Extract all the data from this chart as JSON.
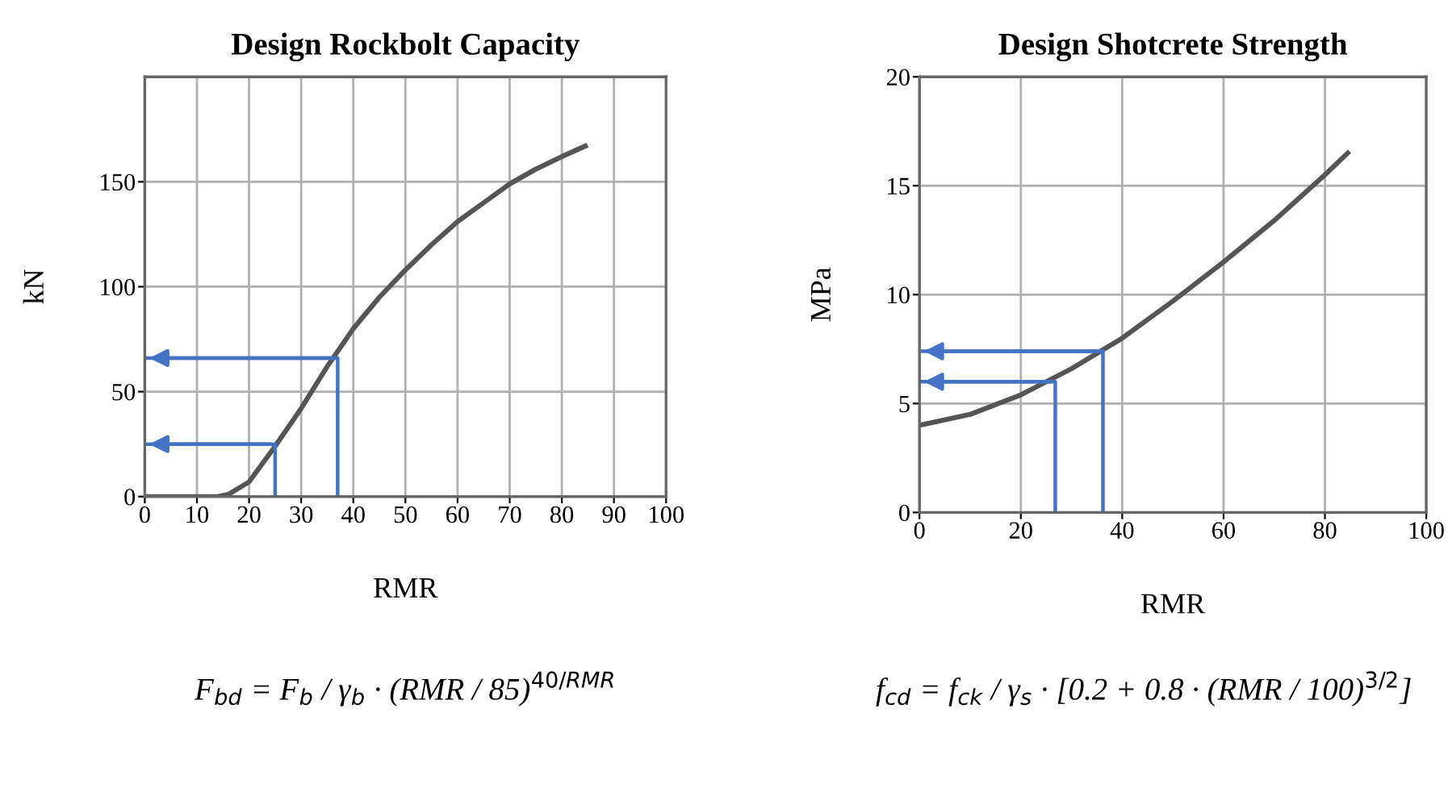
{
  "chart_data": [
    {
      "type": "line",
      "title": "Design Rockbolt Capacity",
      "xlabel": "RMR",
      "ylabel": "kN",
      "xlim": [
        0,
        100
      ],
      "ylim": [
        0,
        200
      ],
      "xticks": [
        0,
        10,
        20,
        30,
        40,
        50,
        60,
        70,
        80,
        90,
        100
      ],
      "yticks": [
        0,
        50,
        100,
        150
      ],
      "grid": true,
      "annotations": [
        "F$_{bd}$ = F$_{b}$ / γ$_{b}$ · (RMR / 85)$^{40/RMR}$"
      ],
      "series": [
        {
          "color": "#555555",
          "x": [
            0,
            14,
            16,
            20,
            25,
            30,
            35,
            40,
            45,
            50,
            55,
            60,
            65,
            70,
            75,
            80,
            84.5
          ],
          "values": [
            0,
            0,
            1,
            7,
            24,
            42,
            62,
            80,
            95,
            108,
            120,
            131,
            140,
            149,
            156,
            162,
            167
          ]
        },
        {
          "color": "#4472c4",
          "x": [
            25,
            25,
            0
          ],
          "values": [
            0,
            25,
            25
          ]
        },
        {
          "color": "#4472c4",
          "x": [
            37,
            37,
            0
          ],
          "values": [
            0,
            66,
            66
          ]
        }
      ]
    },
    {
      "type": "line",
      "title": "Design Shotcrete Strength",
      "xlabel": "RMR",
      "ylabel": "MPa",
      "xlim": [
        0,
        100
      ],
      "ylim": [
        0,
        20
      ],
      "xticks": [
        0,
        20,
        40,
        60,
        80,
        100
      ],
      "yticks": [
        0,
        5,
        10,
        15,
        20
      ],
      "grid": true,
      "annotations": [
        "f$_{cd}$ = f$_{ck}$ / γ$_{s}$ · [0.2 + 0.8 · (RMR / 100)$^{3/2}$]"
      ],
      "series": [
        {
          "color": "#555555",
          "x": [
            0,
            10,
            20,
            30,
            40,
            50,
            60,
            70,
            80,
            84.5
          ],
          "values": [
            4,
            4.5,
            5.4,
            6.6,
            8.0,
            9.7,
            11.5,
            13.4,
            15.5,
            16.5
          ]
        },
        {
          "color": "#4472c4",
          "x": [
            26.8,
            26.8,
            0
          ],
          "values": [
            0,
            6.0,
            6.0
          ]
        },
        {
          "color": "#4472c4",
          "x": [
            36.2,
            36.2,
            0
          ],
          "values": [
            0,
            7.4,
            7.4
          ]
        }
      ]
    }
  ]
}
